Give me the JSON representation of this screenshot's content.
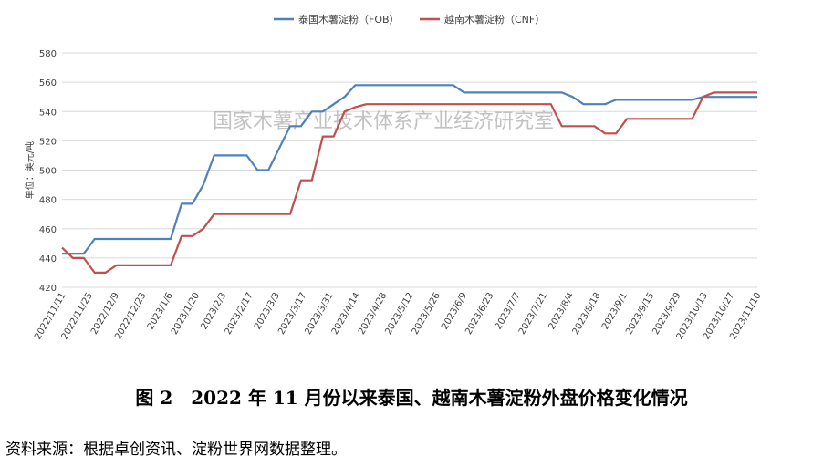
{
  "chart_data": {
    "type": "line",
    "title": "",
    "xlabel": "",
    "ylabel": "单位：美元/吨",
    "ylim": [
      420,
      580
    ],
    "yticks": [
      420,
      440,
      460,
      480,
      500,
      520,
      540,
      560,
      580
    ],
    "grid": "horizontal",
    "legend": "top-center",
    "watermark": "国家木薯产业技术体系产业经济研究室",
    "x_labels": [
      "2022/11/11",
      "2022/11/25",
      "2022/12/9",
      "2022/12/23",
      "2023/1/6",
      "2023/1/20",
      "2023/2/3",
      "2023/2/17",
      "2023/3/3",
      "2023/3/17",
      "2023/3/31",
      "2023/4/14",
      "2023/4/28",
      "2023/5/12",
      "2023/5/26",
      "2023/6/9",
      "2023/6/23",
      "2023/7/7",
      "2023/7/21",
      "2023/8/4",
      "2023/8/18",
      "2023/9/1",
      "2023/9/15",
      "2023/9/29",
      "2023/10/13",
      "2023/10/27",
      "2023/11/10"
    ],
    "series": [
      {
        "name": "泰国木薯淀粉（FOB）",
        "color": "#4f81bd",
        "values": [
          443,
          443,
          443,
          453,
          453,
          453,
          453,
          453,
          453,
          453,
          453,
          477,
          477,
          490,
          510,
          510,
          510,
          510,
          500,
          500,
          515,
          530,
          530,
          540,
          540,
          545,
          550,
          558,
          558,
          558,
          558,
          558,
          558,
          558,
          558,
          558,
          558,
          553,
          553,
          553,
          553,
          553,
          553,
          553,
          553,
          553,
          553,
          550,
          545,
          545,
          545,
          548,
          548,
          548,
          548,
          548,
          548,
          548,
          548,
          550,
          550,
          550,
          550,
          550,
          550
        ]
      },
      {
        "name": "越南木薯淀粉（CNF）",
        "color": "#c0504d",
        "values": [
          447,
          440,
          440,
          430,
          430,
          435,
          435,
          435,
          435,
          435,
          435,
          455,
          455,
          460,
          470,
          470,
          470,
          470,
          470,
          470,
          470,
          470,
          493,
          493,
          523,
          523,
          540,
          543,
          545,
          545,
          545,
          545,
          545,
          545,
          545,
          545,
          545,
          545,
          545,
          545,
          545,
          545,
          545,
          545,
          545,
          545,
          530,
          530,
          530,
          530,
          525,
          525,
          535,
          535,
          535,
          535,
          535,
          535,
          535,
          550,
          553,
          553,
          553,
          553,
          553
        ]
      }
    ]
  },
  "caption": "图 2　2022 年 11 月份以来泰国、越南木薯淀粉外盘价格变化情况",
  "source": "资料来源：根据卓创资讯、淀粉世界网数据整理。"
}
